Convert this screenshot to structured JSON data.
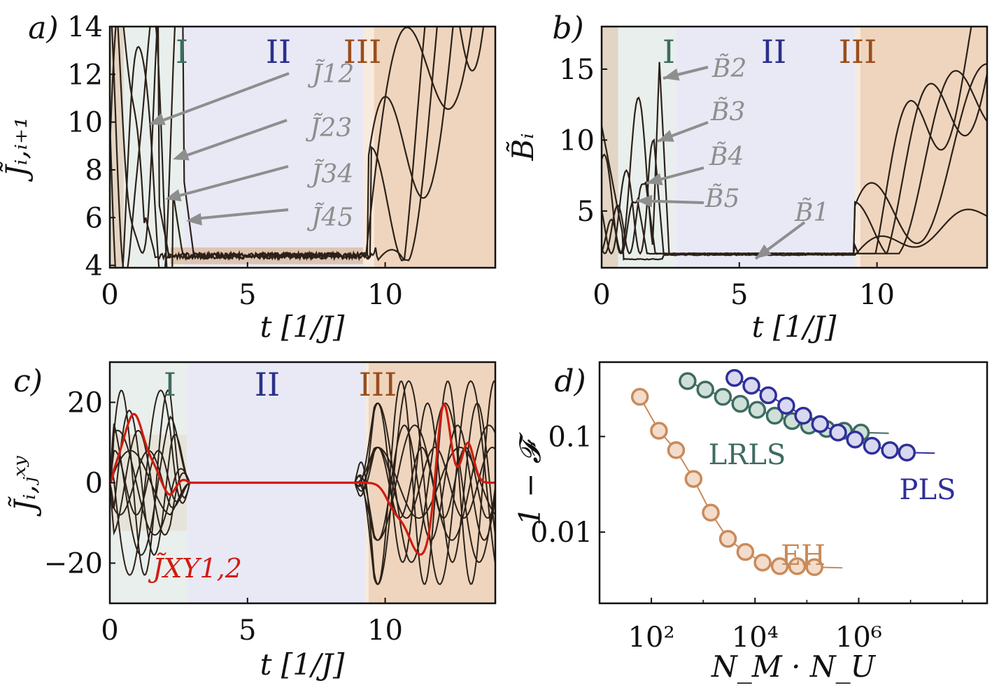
{
  "colors": {
    "region_I": "#e9efec",
    "region_II": "#e9e9f5",
    "region_III": "#f8eadc",
    "text_I": "#3e6b61",
    "text_II": "#2b2f8a",
    "text_III": "#9a4e1a",
    "curve": "#2b2118",
    "band": "#d9a57a",
    "highlight": "#d01c10",
    "annotation": "#8e8e8e",
    "eh": "#c98a5a",
    "lrls": "#3e6b61",
    "pls": "#2f2f9a"
  },
  "panels": {
    "a": {
      "label": "a)",
      "xlabel": "t [1/J]",
      "ylabel": "J̃ᵢ,ᵢ₊₁"
    },
    "b": {
      "label": "b)",
      "xlabel": "t [1/J]",
      "ylabel": "B̃ᵢ"
    },
    "c": {
      "label": "c)",
      "xlabel": "t [1/J]",
      "ylabel": "J̃ᵢ,ⱼˣʸ"
    },
    "d": {
      "label": "d)",
      "xlabel": "N_M · N_U",
      "ylabel": "1 − 𝓕"
    }
  },
  "regions": {
    "I": "I",
    "II": "II",
    "III": "III"
  },
  "annotations_a": [
    "J̃12",
    "J̃23",
    "J̃34",
    "J̃45"
  ],
  "annotations_b": [
    "B̃2",
    "B̃3",
    "B̃4",
    "B̃5",
    "B̃1"
  ],
  "annotation_c": "J̃XY1,2",
  "chart_data": [
    {
      "panel": "a",
      "type": "line",
      "xlabel": "t [1/J]",
      "ylabel": "J̃_{i,i+1}",
      "xlim": [
        0,
        14
      ],
      "ylim": [
        3.9,
        14
      ],
      "xticks": [
        0,
        5,
        10
      ],
      "yticks": [
        4,
        6,
        8,
        10,
        12,
        14
      ],
      "regions": [
        {
          "name": "I",
          "x": [
            0,
            2.7
          ]
        },
        {
          "name": "II",
          "x": [
            2.7,
            9.2
          ]
        },
        {
          "name": "III",
          "x": [
            9.2,
            14
          ]
        }
      ],
      "plateau": 4.4,
      "series": [
        {
          "name": "J̃12",
          "drop_time": 1.3
        },
        {
          "name": "J̃23",
          "drop_time": 1.8
        },
        {
          "name": "J̃34",
          "drop_time": 2.3
        },
        {
          "name": "J̃45",
          "drop_time": 2.7
        }
      ]
    },
    {
      "panel": "b",
      "type": "line",
      "xlabel": "t [1/J]",
      "ylabel": "B̃_i",
      "xlim": [
        0,
        14
      ],
      "ylim": [
        1.0,
        18
      ],
      "xticks": [
        0,
        5,
        10
      ],
      "yticks": [
        5,
        10,
        15
      ],
      "regions": [
        {
          "name": "I",
          "x": [
            0,
            2.7
          ]
        },
        {
          "name": "II",
          "x": [
            2.7,
            9.2
          ]
        },
        {
          "name": "III",
          "x": [
            9.2,
            14
          ]
        }
      ],
      "plateau": 2.0,
      "series": [
        {
          "name": "B̃1",
          "plateau": 1.6
        },
        {
          "name": "B̃2",
          "peak": 15.5,
          "peak_time": 2.1
        },
        {
          "name": "B̃3",
          "peak": 10.0,
          "peak_time": 1.9
        },
        {
          "name": "B̃4",
          "peak": 7.0,
          "peak_time": 1.6
        },
        {
          "name": "B̃5",
          "peak": 5.8,
          "peak_time": 1.3
        }
      ]
    },
    {
      "panel": "c",
      "type": "line",
      "xlabel": "t [1/J]",
      "ylabel": "J̃^{XY}_{i,j}",
      "xlim": [
        0,
        14
      ],
      "ylim": [
        -30,
        30
      ],
      "xticks": [
        0,
        5,
        10
      ],
      "yticks": [
        -20,
        0,
        20
      ],
      "regions": [
        {
          "name": "I",
          "x": [
            0,
            2.8
          ]
        },
        {
          "name": "II",
          "x": [
            2.8,
            9.3
          ]
        },
        {
          "name": "III",
          "x": [
            9.3,
            14
          ]
        }
      ],
      "highlight_series": "J̃^{XY}_{1,2}",
      "plateau": 0
    },
    {
      "panel": "d",
      "type": "scatter",
      "xscale": "log",
      "yscale": "log",
      "xlabel": "N_M · N_U",
      "ylabel": "1 − 𝓕",
      "xlim": [
        10,
        300000000
      ],
      "ylim": [
        0.0018,
        0.6
      ],
      "xticks": [
        100,
        10000,
        1000000
      ],
      "xtick_labels": [
        "10²",
        "10⁴",
        "10⁶"
      ],
      "yticks": [
        0.01,
        0.1
      ],
      "ytick_labels": [
        "0.01",
        "0.1"
      ],
      "series": [
        {
          "name": "EH",
          "x": [
            60,
            140,
            300,
            650,
            1400,
            3000,
            6500,
            14000,
            30000,
            65000,
            140000
          ],
          "y": [
            0.26,
            0.115,
            0.072,
            0.036,
            0.016,
            0.0085,
            0.0062,
            0.0048,
            0.0044,
            0.0044,
            0.0043
          ]
        },
        {
          "name": "LRLS",
          "x": [
            500,
            1100,
            2400,
            5200,
            11000,
            24000,
            52000,
            110000,
            240000,
            520000,
            1100000
          ],
          "y": [
            0.38,
            0.31,
            0.26,
            0.22,
            0.19,
            0.165,
            0.145,
            0.13,
            0.12,
            0.115,
            0.11
          ]
        },
        {
          "name": "PLS",
          "x": [
            4000,
            8500,
            18000,
            40000,
            85000,
            180000,
            400000,
            850000,
            1800000,
            4000000,
            8500000
          ],
          "y": [
            0.41,
            0.34,
            0.27,
            0.21,
            0.165,
            0.135,
            0.11,
            0.093,
            0.08,
            0.072,
            0.068
          ]
        }
      ]
    }
  ]
}
